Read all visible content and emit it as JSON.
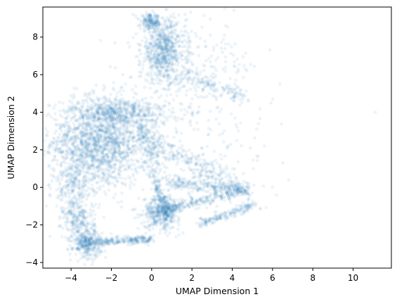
{
  "chart_data": {
    "type": "scatter",
    "title": "",
    "xlabel": "UMAP Dimension 1",
    "ylabel": "UMAP Dimension 2",
    "xlim": [
      -5.4,
      11.9
    ],
    "ylim": [
      -4.3,
      9.6
    ],
    "xticks": [
      -4,
      -2,
      0,
      2,
      4,
      6,
      8,
      10
    ],
    "yticks": [
      -4,
      -2,
      0,
      2,
      4,
      6,
      8
    ],
    "xtick_labels": [
      "−4",
      "−2",
      "0",
      "2",
      "4",
      "6",
      "8",
      "10"
    ],
    "ytick_labels": [
      "−4",
      "−2",
      "0",
      "2",
      "4",
      "6",
      "8"
    ],
    "grid": false,
    "legend": "none",
    "marker_color": "#1f77b4",
    "marker_alpha": 0.08,
    "clusters": [
      {
        "cx": -2.6,
        "cy": 2.4,
        "sx": 1.2,
        "sy": 1.2,
        "n": 1700
      },
      {
        "cx": -1.5,
        "cy": 4.0,
        "sx": 1.2,
        "sy": 0.4,
        "n": 450
      },
      {
        "cx": 0.6,
        "cy": 7.3,
        "sx": 0.55,
        "sy": 0.85,
        "n": 700
      },
      {
        "cx": -0.05,
        "cy": 8.8,
        "sx": 0.25,
        "sy": 0.2,
        "n": 160
      },
      {
        "cx": 2.2,
        "cy": 6.2,
        "sx": 1.6,
        "sy": 1.3,
        "n": 220
      },
      {
        "cx": -3.2,
        "cy": -3.0,
        "sx": 0.35,
        "sy": 0.35,
        "n": 320
      },
      {
        "cx": -3.6,
        "cy": -1.8,
        "sx": 0.4,
        "sy": 0.55,
        "n": 220
      },
      {
        "cx": -3.9,
        "cy": 0.0,
        "sx": 0.5,
        "sy": 0.8,
        "n": 220
      },
      {
        "cx": 0.5,
        "cy": -1.3,
        "sx": 0.45,
        "sy": 0.45,
        "n": 450
      },
      {
        "cx": 2.5,
        "cy": 3.0,
        "sx": 1.6,
        "sy": 1.5,
        "n": 120
      }
    ],
    "segments": [
      {
        "x0": -2.9,
        "y0": -2.9,
        "x1": 0.0,
        "y1": -2.75,
        "w": 0.12,
        "n": 240
      },
      {
        "x0": 0.6,
        "y0": -1.2,
        "x1": 4.8,
        "y1": -0.1,
        "w": 0.15,
        "n": 280
      },
      {
        "x0": 0.9,
        "y0": 0.3,
        "x1": 4.8,
        "y1": -0.15,
        "w": 0.18,
        "n": 260
      },
      {
        "x0": 2.4,
        "y0": -1.9,
        "x1": 5.2,
        "y1": -0.9,
        "w": 0.12,
        "n": 180
      },
      {
        "x0": -0.4,
        "y0": 2.8,
        "x1": 4.5,
        "y1": -0.1,
        "w": 0.3,
        "n": 280
      },
      {
        "x0": 0.1,
        "y0": 0.5,
        "x1": 0.8,
        "y1": -1.5,
        "w": 0.12,
        "n": 120
      },
      {
        "x0": -0.5,
        "y0": 3.5,
        "x1": 0.3,
        "y1": 0.6,
        "w": 0.25,
        "n": 160
      },
      {
        "x0": 1.5,
        "y0": 6.0,
        "x1": 4.5,
        "y1": 4.8,
        "w": 0.2,
        "n": 120
      }
    ],
    "outliers": [
      [
        11.1,
        4.0
      ],
      [
        6.8,
        0.4
      ],
      [
        6.5,
        1.3
      ],
      [
        6.2,
        -0.4
      ],
      [
        5.3,
        3.4
      ],
      [
        5.6,
        2.2
      ],
      [
        4.3,
        3.0
      ],
      [
        4.9,
        2.1
      ],
      [
        3.8,
        2.2
      ],
      [
        6.0,
        0.0
      ]
    ]
  }
}
